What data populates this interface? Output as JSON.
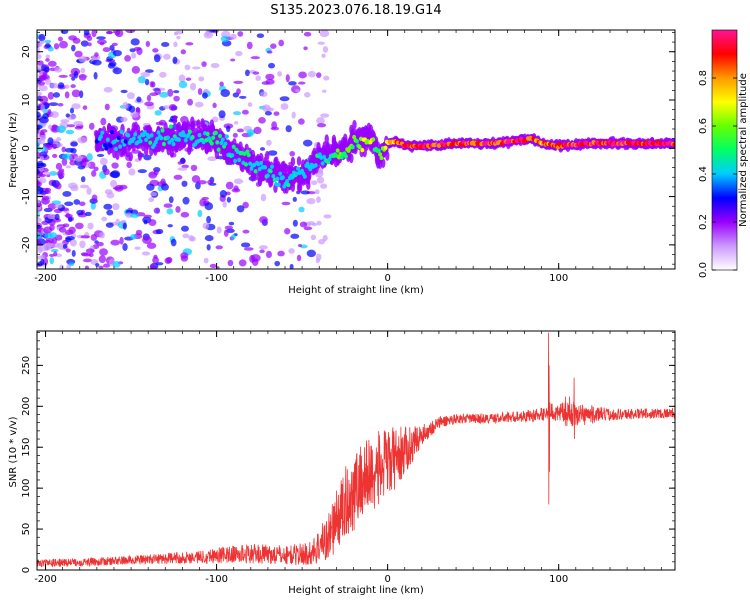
{
  "title": "S135.2023.076.18.19.G14",
  "chart_data": [
    {
      "type": "heatmap",
      "xlabel": "Height of straight line (km)",
      "ylabel": "Frequency (Hz)",
      "xlim": [
        -205,
        168
      ],
      "ylim": [
        -25,
        24.5
      ],
      "x_ticks": [
        -200,
        -100,
        0,
        100
      ],
      "y_ticks": [
        -20,
        -10,
        0,
        10,
        20
      ],
      "colorbar": {
        "label": "Normalized spectral amplitude",
        "ticks": [
          "0.0",
          "0.2",
          "0.4",
          "0.6",
          "0.8"
        ],
        "range": [
          0,
          1
        ],
        "colors": [
          "#ffffff",
          "#cc99ff",
          "#9900ff",
          "#0000ff",
          "#00ccff",
          "#00ff66",
          "#66ff00",
          "#ffff00",
          "#ff9900",
          "#ff0000",
          "#ff1493"
        ]
      },
      "ridge": {
        "x": [
          -170,
          -150,
          -130,
          -110,
          -100,
          -90,
          -80,
          -70,
          -60,
          -50,
          -40,
          -30,
          -20,
          -10,
          -5,
          0,
          5,
          10,
          20,
          40,
          60,
          75,
          85,
          90,
          100,
          120,
          140,
          168
        ],
        "y": [
          1.5,
          1.5,
          2,
          2.5,
          2,
          -1,
          -3,
          -4.5,
          -6.5,
          -5.5,
          -2,
          -1,
          1,
          2,
          -1.5,
          1,
          1.5,
          0.5,
          0.5,
          1,
          1,
          1.5,
          2,
          1,
          0.5,
          1,
          1,
          1
        ],
        "value": [
          0.35,
          0.4,
          0.45,
          0.45,
          0.5,
          0.45,
          0.45,
          0.45,
          0.45,
          0.4,
          0.45,
          0.5,
          0.6,
          0.65,
          0.55,
          0.75,
          0.8,
          0.9,
          0.95,
          0.9,
          0.9,
          0.95,
          0.85,
          0.8,
          0.9,
          0.95,
          0.95,
          0.95
        ]
      }
    },
    {
      "type": "line",
      "xlabel": "Height of straight line (km)",
      "ylabel": "SNR (10 * v/v)",
      "xlim": [
        -205,
        168
      ],
      "ylim": [
        0,
        292
      ],
      "x_ticks": [
        -200,
        -100,
        0,
        100
      ],
      "y_ticks": [
        0,
        50,
        100,
        150,
        200,
        250
      ],
      "color": "#ee3333",
      "envelope": {
        "x": [
          -205,
          -170,
          -140,
          -110,
          -100,
          -80,
          -60,
          -45,
          -35,
          -25,
          -15,
          0,
          10,
          20,
          30,
          40,
          60,
          80,
          90,
          95,
          100,
          105,
          110,
          130,
          168
        ],
        "mean": [
          8,
          10,
          13,
          16,
          18,
          20,
          18,
          20,
          40,
          80,
          110,
          130,
          145,
          165,
          180,
          185,
          185,
          188,
          190,
          195,
          190,
          195,
          190,
          190,
          192
        ],
        "amp": [
          5,
          5,
          6,
          8,
          10,
          12,
          12,
          15,
          30,
          45,
          50,
          45,
          30,
          12,
          8,
          6,
          6,
          7,
          8,
          10,
          10,
          20,
          15,
          7,
          6
        ]
      },
      "spikes": [
        {
          "x": 94,
          "values": [
            290,
            80,
            250,
            120
          ]
        },
        {
          "x": 109,
          "values": [
            235,
            160
          ]
        }
      ]
    }
  ]
}
